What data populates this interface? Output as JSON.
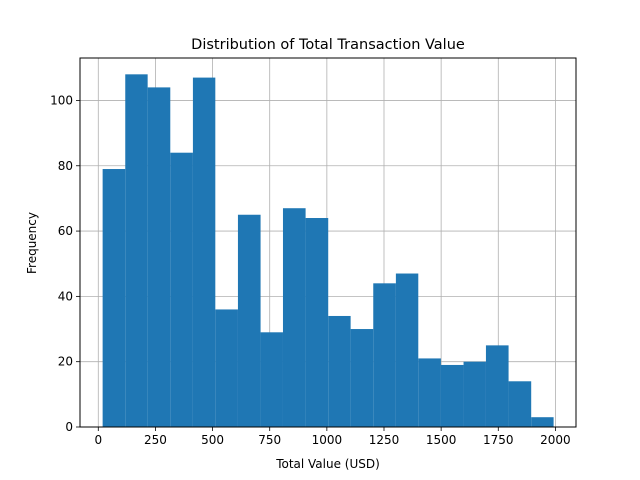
{
  "chart_data": {
    "type": "bar",
    "title": "Distribution of Total Transaction Value",
    "xlabel": "Total Value (USD)",
    "ylabel": "Frequency",
    "bin_edges": [
      19,
      118,
      216,
      315,
      414,
      512,
      611,
      710,
      808,
      907,
      1006,
      1104,
      1203,
      1302,
      1400,
      1499,
      1598,
      1696,
      1795,
      1894,
      1992
    ],
    "values": [
      79,
      108,
      104,
      84,
      107,
      36,
      65,
      29,
      67,
      64,
      34,
      30,
      44,
      47,
      21,
      19,
      20,
      25,
      14,
      3
    ],
    "xlim": [
      -80,
      2090
    ],
    "ylim": [
      0,
      113
    ],
    "xticks": [
      0,
      250,
      500,
      750,
      1000,
      1250,
      1500,
      1750,
      2000
    ],
    "yticks": [
      0,
      20,
      40,
      60,
      80,
      100
    ],
    "grid": true,
    "bar_color": "#1f77b4",
    "grid_color": "#b0b0b0"
  }
}
